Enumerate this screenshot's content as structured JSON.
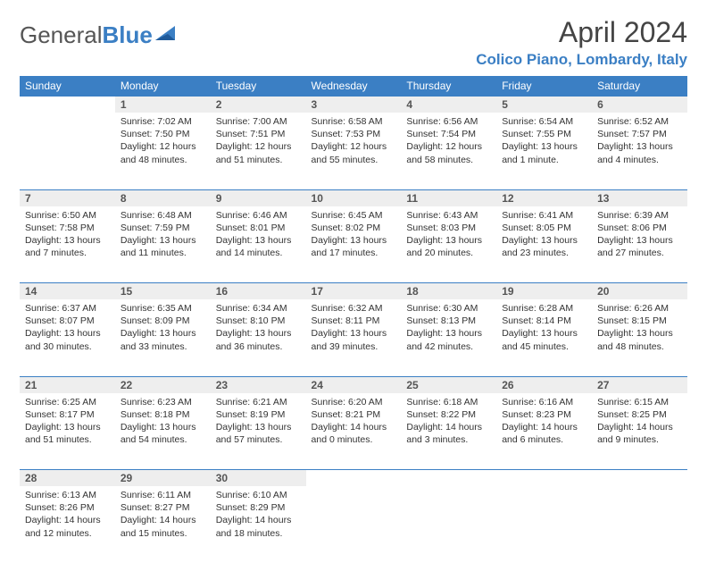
{
  "logo": {
    "part1": "General",
    "part2": "Blue"
  },
  "title": "April 2024",
  "location": "Colico Piano, Lombardy, Italy",
  "accent_color": "#3b7fc4",
  "gray_bg": "#eeeeee",
  "day_headers": [
    "Sunday",
    "Monday",
    "Tuesday",
    "Wednesday",
    "Thursday",
    "Friday",
    "Saturday"
  ],
  "weeks": [
    {
      "nums": [
        "",
        "1",
        "2",
        "3",
        "4",
        "5",
        "6"
      ],
      "cells": [
        {
          "lines": []
        },
        {
          "lines": [
            "Sunrise: 7:02 AM",
            "Sunset: 7:50 PM",
            "Daylight: 12 hours and 48 minutes."
          ]
        },
        {
          "lines": [
            "Sunrise: 7:00 AM",
            "Sunset: 7:51 PM",
            "Daylight: 12 hours and 51 minutes."
          ]
        },
        {
          "lines": [
            "Sunrise: 6:58 AM",
            "Sunset: 7:53 PM",
            "Daylight: 12 hours and 55 minutes."
          ]
        },
        {
          "lines": [
            "Sunrise: 6:56 AM",
            "Sunset: 7:54 PM",
            "Daylight: 12 hours and 58 minutes."
          ]
        },
        {
          "lines": [
            "Sunrise: 6:54 AM",
            "Sunset: 7:55 PM",
            "Daylight: 13 hours and 1 minute."
          ]
        },
        {
          "lines": [
            "Sunrise: 6:52 AM",
            "Sunset: 7:57 PM",
            "Daylight: 13 hours and 4 minutes."
          ]
        }
      ]
    },
    {
      "nums": [
        "7",
        "8",
        "9",
        "10",
        "11",
        "12",
        "13"
      ],
      "cells": [
        {
          "lines": [
            "Sunrise: 6:50 AM",
            "Sunset: 7:58 PM",
            "Daylight: 13 hours and 7 minutes."
          ]
        },
        {
          "lines": [
            "Sunrise: 6:48 AM",
            "Sunset: 7:59 PM",
            "Daylight: 13 hours and 11 minutes."
          ]
        },
        {
          "lines": [
            "Sunrise: 6:46 AM",
            "Sunset: 8:01 PM",
            "Daylight: 13 hours and 14 minutes."
          ]
        },
        {
          "lines": [
            "Sunrise: 6:45 AM",
            "Sunset: 8:02 PM",
            "Daylight: 13 hours and 17 minutes."
          ]
        },
        {
          "lines": [
            "Sunrise: 6:43 AM",
            "Sunset: 8:03 PM",
            "Daylight: 13 hours and 20 minutes."
          ]
        },
        {
          "lines": [
            "Sunrise: 6:41 AM",
            "Sunset: 8:05 PM",
            "Daylight: 13 hours and 23 minutes."
          ]
        },
        {
          "lines": [
            "Sunrise: 6:39 AM",
            "Sunset: 8:06 PM",
            "Daylight: 13 hours and 27 minutes."
          ]
        }
      ]
    },
    {
      "nums": [
        "14",
        "15",
        "16",
        "17",
        "18",
        "19",
        "20"
      ],
      "cells": [
        {
          "lines": [
            "Sunrise: 6:37 AM",
            "Sunset: 8:07 PM",
            "Daylight: 13 hours and 30 minutes."
          ]
        },
        {
          "lines": [
            "Sunrise: 6:35 AM",
            "Sunset: 8:09 PM",
            "Daylight: 13 hours and 33 minutes."
          ]
        },
        {
          "lines": [
            "Sunrise: 6:34 AM",
            "Sunset: 8:10 PM",
            "Daylight: 13 hours and 36 minutes."
          ]
        },
        {
          "lines": [
            "Sunrise: 6:32 AM",
            "Sunset: 8:11 PM",
            "Daylight: 13 hours and 39 minutes."
          ]
        },
        {
          "lines": [
            "Sunrise: 6:30 AM",
            "Sunset: 8:13 PM",
            "Daylight: 13 hours and 42 minutes."
          ]
        },
        {
          "lines": [
            "Sunrise: 6:28 AM",
            "Sunset: 8:14 PM",
            "Daylight: 13 hours and 45 minutes."
          ]
        },
        {
          "lines": [
            "Sunrise: 6:26 AM",
            "Sunset: 8:15 PM",
            "Daylight: 13 hours and 48 minutes."
          ]
        }
      ]
    },
    {
      "nums": [
        "21",
        "22",
        "23",
        "24",
        "25",
        "26",
        "27"
      ],
      "cells": [
        {
          "lines": [
            "Sunrise: 6:25 AM",
            "Sunset: 8:17 PM",
            "Daylight: 13 hours and 51 minutes."
          ]
        },
        {
          "lines": [
            "Sunrise: 6:23 AM",
            "Sunset: 8:18 PM",
            "Daylight: 13 hours and 54 minutes."
          ]
        },
        {
          "lines": [
            "Sunrise: 6:21 AM",
            "Sunset: 8:19 PM",
            "Daylight: 13 hours and 57 minutes."
          ]
        },
        {
          "lines": [
            "Sunrise: 6:20 AM",
            "Sunset: 8:21 PM",
            "Daylight: 14 hours and 0 minutes."
          ]
        },
        {
          "lines": [
            "Sunrise: 6:18 AM",
            "Sunset: 8:22 PM",
            "Daylight: 14 hours and 3 minutes."
          ]
        },
        {
          "lines": [
            "Sunrise: 6:16 AM",
            "Sunset: 8:23 PM",
            "Daylight: 14 hours and 6 minutes."
          ]
        },
        {
          "lines": [
            "Sunrise: 6:15 AM",
            "Sunset: 8:25 PM",
            "Daylight: 14 hours and 9 minutes."
          ]
        }
      ]
    },
    {
      "nums": [
        "28",
        "29",
        "30",
        "",
        "",
        "",
        ""
      ],
      "cells": [
        {
          "lines": [
            "Sunrise: 6:13 AM",
            "Sunset: 8:26 PM",
            "Daylight: 14 hours and 12 minutes."
          ]
        },
        {
          "lines": [
            "Sunrise: 6:11 AM",
            "Sunset: 8:27 PM",
            "Daylight: 14 hours and 15 minutes."
          ]
        },
        {
          "lines": [
            "Sunrise: 6:10 AM",
            "Sunset: 8:29 PM",
            "Daylight: 14 hours and 18 minutes."
          ]
        },
        {
          "lines": []
        },
        {
          "lines": []
        },
        {
          "lines": []
        },
        {
          "lines": []
        }
      ]
    }
  ]
}
